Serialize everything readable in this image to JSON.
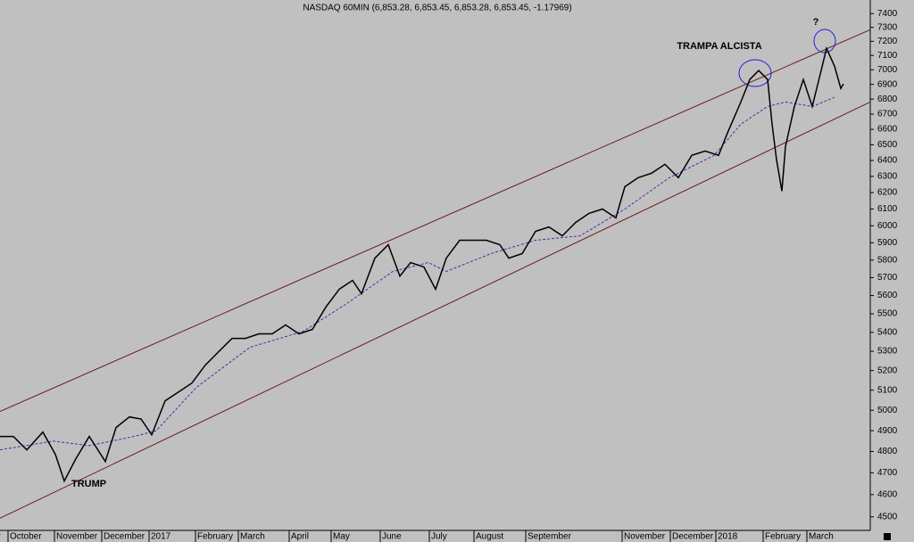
{
  "chart_data": {
    "type": "line",
    "title": "NASDAQ 60MIN (6,853.28, 6,853.45, 6,853.28, 6,853.45, -1.17969)",
    "log_y": true,
    "xlim": [
      0,
      975
    ],
    "ylim": [
      4440,
      7500
    ],
    "yticks": [
      4500,
      4600,
      4700,
      4800,
      4900,
      5000,
      5100,
      5200,
      5300,
      5400,
      5500,
      5600,
      5700,
      5800,
      5900,
      6000,
      6100,
      6200,
      6300,
      6400,
      6500,
      6600,
      6700,
      6800,
      6900,
      7000,
      7100,
      7200,
      7300,
      7400
    ],
    "xticks": [
      {
        "value": -10,
        "label": "er"
      },
      {
        "value": 9,
        "label": "October"
      },
      {
        "value": 61,
        "label": "November"
      },
      {
        "value": 114,
        "label": "December"
      },
      {
        "value": 167,
        "label": "2017"
      },
      {
        "value": 219,
        "label": "February"
      },
      {
        "value": 267,
        "label": "March"
      },
      {
        "value": 324,
        "label": "April"
      },
      {
        "value": 371,
        "label": "May"
      },
      {
        "value": 426,
        "label": "June"
      },
      {
        "value": 481,
        "label": "July"
      },
      {
        "value": 531,
        "label": "August"
      },
      {
        "value": 589,
        "label": "September"
      },
      {
        "value": 697,
        "label": "November"
      },
      {
        "value": 751,
        "label": "December"
      },
      {
        "value": 802,
        "label": "2018"
      },
      {
        "value": 855,
        "label": "February"
      },
      {
        "value": 904,
        "label": "March"
      }
    ],
    "series": [
      {
        "color": "#000000",
        "width": 1.5,
        "dashed": false,
        "x": [
          0,
          15,
          30,
          48,
          62,
          72,
          85,
          100,
          118,
          130,
          145,
          158,
          170,
          185,
          200,
          215,
          230,
          245,
          260,
          275,
          290,
          305,
          320,
          335,
          350,
          365,
          380,
          395,
          405,
          420,
          435,
          448,
          460,
          475,
          488,
          500,
          515,
          530,
          545,
          560,
          570,
          585,
          600,
          615,
          630,
          645,
          660,
          675,
          690,
          700,
          715,
          730,
          745,
          760,
          775,
          790,
          805,
          815,
          830,
          840,
          850,
          860,
          865,
          870,
          876,
          880,
          890,
          900,
          910,
          920,
          926,
          935,
          942,
          945
        ],
        "values": [
          4872,
          4872,
          4808,
          4893,
          4787,
          4662,
          4766,
          4872,
          4753,
          4915,
          4967,
          4957,
          4880,
          5047,
          5091,
          5136,
          5228,
          5298,
          5368,
          5368,
          5392,
          5392,
          5440,
          5392,
          5416,
          5536,
          5635,
          5685,
          5610,
          5811,
          5889,
          5709,
          5786,
          5760,
          5635,
          5811,
          5915,
          5915,
          5915,
          5889,
          5811,
          5837,
          5967,
          5993,
          5941,
          6020,
          6074,
          6100,
          6047,
          6236,
          6292,
          6320,
          6376,
          6292,
          6432,
          6460,
          6432,
          6576,
          6781,
          6933,
          6995,
          6933,
          6634,
          6404,
          6209,
          6489,
          6751,
          6933,
          6751,
          6995,
          7150,
          7025,
          6872,
          6903
        ]
      },
      {
        "color": "#4b2ca0",
        "width": 1,
        "dashed": true,
        "x": [
          0,
          60,
          100,
          150,
          175,
          220,
          280,
          340,
          390,
          440,
          480,
          500,
          550,
          600,
          650,
          700,
          750,
          800,
          830,
          860,
          880,
          910,
          935
        ],
        "values": [
          4808,
          4850,
          4828,
          4872,
          4900,
          5114,
          5321,
          5406,
          5561,
          5735,
          5786,
          5735,
          5837,
          5915,
          5941,
          6100,
          6292,
          6432,
          6634,
          6751,
          6781,
          6751,
          6812
        ]
      },
      {
        "color": "#6b1a1a",
        "width": 1,
        "dashed": false,
        "x": [
          0,
          975
        ],
        "values": [
          4994,
          7283
        ]
      },
      {
        "color": "#6b1a1a",
        "width": 1,
        "dashed": false,
        "x": [
          0,
          975
        ],
        "values": [
          4494,
          6781
        ]
      }
    ],
    "annotations": [
      "TRAMPA ALCISTA",
      "?",
      "TRUMP"
    ]
  }
}
